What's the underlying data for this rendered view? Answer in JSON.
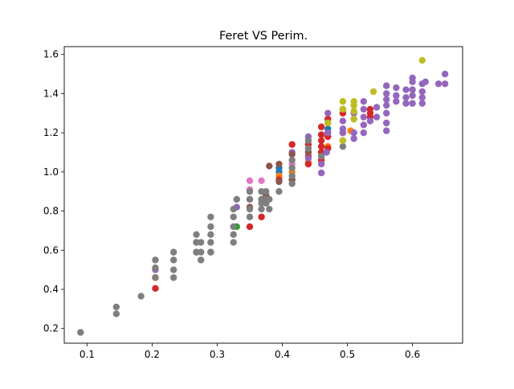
{
  "chart_data": {
    "type": "scatter",
    "title": "Feret VS Perim.",
    "xlabel": "",
    "ylabel": "",
    "xlim": [
      0.065,
      0.677
    ],
    "ylim": [
      0.125,
      1.64
    ],
    "xticks": [
      0.1,
      0.2,
      0.3,
      0.4,
      0.5,
      0.6
    ],
    "xtick_labels": [
      "0.1",
      "0.2",
      "0.3",
      "0.4",
      "0.5",
      "0.6"
    ],
    "yticks": [
      0.2,
      0.4,
      0.6,
      0.8,
      1.0,
      1.2,
      1.4,
      1.6
    ],
    "ytick_labels": [
      "0.2",
      "0.4",
      "0.6",
      "0.8",
      "1.0",
      "1.2",
      "1.4",
      "1.6"
    ],
    "grid": false,
    "legend": "none",
    "series": [
      {
        "color": "#1f77b4",
        "points": [
          [
            0.268,
            0.59
          ],
          [
            0.395,
            1.0
          ],
          [
            0.395,
            1.02
          ],
          [
            0.46,
            1.1
          ],
          [
            0.47,
            1.22
          ]
        ]
      },
      {
        "color": "#ff7f0e",
        "points": [
          [
            0.395,
            0.98
          ],
          [
            0.415,
            1.0
          ],
          [
            0.44,
            1.05
          ],
          [
            0.46,
            1.1
          ],
          [
            0.47,
            1.13
          ],
          [
            0.505,
            1.21
          ]
        ]
      },
      {
        "color": "#2ca02c",
        "points": [
          [
            0.29,
            0.59
          ],
          [
            0.33,
            0.72
          ],
          [
            0.415,
            0.96
          ],
          [
            0.47,
            1.2
          ]
        ]
      },
      {
        "color": "#d62728",
        "points": [
          [
            0.205,
            0.405
          ],
          [
            0.205,
            0.46
          ],
          [
            0.35,
            0.72
          ],
          [
            0.368,
            0.77
          ],
          [
            0.395,
            0.96
          ],
          [
            0.415,
            1.14
          ],
          [
            0.44,
            1.08
          ],
          [
            0.44,
            1.14
          ],
          [
            0.46,
            1.06
          ],
          [
            0.46,
            1.1
          ],
          [
            0.46,
            1.13
          ],
          [
            0.46,
            1.16
          ],
          [
            0.46,
            1.19
          ],
          [
            0.46,
            1.23
          ],
          [
            0.47,
            1.12
          ],
          [
            0.47,
            1.18
          ],
          [
            0.47,
            1.25
          ],
          [
            0.47,
            1.27
          ],
          [
            0.493,
            1.3
          ],
          [
            0.493,
            1.32
          ],
          [
            0.493,
            1.2
          ],
          [
            0.535,
            1.28
          ],
          [
            0.535,
            1.3
          ],
          [
            0.535,
            1.32
          ],
          [
            0.44,
            1.04
          ]
        ]
      },
      {
        "color": "#9467bd",
        "points": [
          [
            0.205,
            0.5
          ],
          [
            0.33,
            0.82
          ],
          [
            0.35,
            0.86
          ],
          [
            0.415,
            1.1
          ],
          [
            0.44,
            1.07
          ],
          [
            0.44,
            1.18
          ],
          [
            0.46,
            0.995
          ],
          [
            0.46,
            1.04
          ],
          [
            0.468,
            1.1
          ],
          [
            0.47,
            1.3
          ],
          [
            0.47,
            1.2
          ],
          [
            0.493,
            1.2
          ],
          [
            0.493,
            1.22
          ],
          [
            0.493,
            1.26
          ],
          [
            0.51,
            1.17
          ],
          [
            0.51,
            1.2
          ],
          [
            0.51,
            1.27
          ],
          [
            0.51,
            1.3
          ],
          [
            0.525,
            1.2
          ],
          [
            0.525,
            1.24
          ],
          [
            0.525,
            1.28
          ],
          [
            0.525,
            1.32
          ],
          [
            0.525,
            1.36
          ],
          [
            0.535,
            1.26
          ],
          [
            0.545,
            1.28
          ],
          [
            0.545,
            1.33
          ],
          [
            0.56,
            1.21
          ],
          [
            0.56,
            1.25
          ],
          [
            0.56,
            1.3
          ],
          [
            0.56,
            1.34
          ],
          [
            0.56,
            1.37
          ],
          [
            0.56,
            1.4
          ],
          [
            0.56,
            1.44
          ],
          [
            0.575,
            1.36
          ],
          [
            0.575,
            1.39
          ],
          [
            0.575,
            1.43
          ],
          [
            0.59,
            1.35
          ],
          [
            0.59,
            1.38
          ],
          [
            0.59,
            1.42
          ],
          [
            0.6,
            1.35
          ],
          [
            0.6,
            1.39
          ],
          [
            0.6,
            1.42
          ],
          [
            0.6,
            1.46
          ],
          [
            0.6,
            1.48
          ],
          [
            0.615,
            1.35
          ],
          [
            0.615,
            1.38
          ],
          [
            0.615,
            1.41
          ],
          [
            0.615,
            1.45
          ],
          [
            0.62,
            1.46
          ],
          [
            0.64,
            1.45
          ],
          [
            0.65,
            1.45
          ],
          [
            0.65,
            1.5
          ]
        ]
      },
      {
        "color": "#8c564b",
        "points": [
          [
            0.205,
            0.46
          ],
          [
            0.268,
            0.64
          ],
          [
            0.35,
            0.82
          ],
          [
            0.375,
            0.88
          ],
          [
            0.38,
            1.03
          ],
          [
            0.395,
            0.95
          ],
          [
            0.395,
            1.04
          ],
          [
            0.415,
            1.09
          ],
          [
            0.44,
            1.1
          ],
          [
            0.415,
            0.96
          ]
        ]
      },
      {
        "color": "#e377c2",
        "points": [
          [
            0.35,
            0.91
          ],
          [
            0.35,
            0.955
          ],
          [
            0.368,
            0.955
          ],
          [
            0.415,
            1.04
          ]
        ]
      },
      {
        "color": "#7f7f7f",
        "points": [
          [
            0.09,
            0.18
          ],
          [
            0.145,
            0.275
          ],
          [
            0.145,
            0.31
          ],
          [
            0.183,
            0.365
          ],
          [
            0.205,
            0.46
          ],
          [
            0.205,
            0.51
          ],
          [
            0.205,
            0.55
          ],
          [
            0.233,
            0.46
          ],
          [
            0.233,
            0.5
          ],
          [
            0.233,
            0.55
          ],
          [
            0.233,
            0.59
          ],
          [
            0.268,
            0.59
          ],
          [
            0.268,
            0.64
          ],
          [
            0.268,
            0.68
          ],
          [
            0.275,
            0.55
          ],
          [
            0.275,
            0.59
          ],
          [
            0.275,
            0.64
          ],
          [
            0.29,
            0.59
          ],
          [
            0.29,
            0.64
          ],
          [
            0.29,
            0.68
          ],
          [
            0.29,
            0.72
          ],
          [
            0.29,
            0.77
          ],
          [
            0.325,
            0.64
          ],
          [
            0.325,
            0.68
          ],
          [
            0.325,
            0.72
          ],
          [
            0.325,
            0.77
          ],
          [
            0.325,
            0.81
          ],
          [
            0.33,
            0.86
          ],
          [
            0.35,
            0.77
          ],
          [
            0.35,
            0.81
          ],
          [
            0.35,
            0.86
          ],
          [
            0.35,
            0.9
          ],
          [
            0.368,
            0.81
          ],
          [
            0.368,
            0.84
          ],
          [
            0.368,
            0.86
          ],
          [
            0.368,
            0.9
          ],
          [
            0.375,
            0.84
          ],
          [
            0.375,
            0.86
          ],
          [
            0.375,
            0.9
          ],
          [
            0.38,
            0.86
          ],
          [
            0.38,
            0.81
          ],
          [
            0.395,
            0.9
          ],
          [
            0.415,
            0.94
          ],
          [
            0.415,
            0.98
          ],
          [
            0.415,
            1.02
          ],
          [
            0.415,
            1.06
          ],
          [
            0.44,
            1.12
          ],
          [
            0.44,
            1.16
          ],
          [
            0.46,
            1.08
          ],
          [
            0.493,
            1.13
          ],
          [
            0.493,
            1.16
          ]
        ]
      },
      {
        "color": "#bcbd22",
        "points": [
          [
            0.493,
            1.36
          ],
          [
            0.493,
            1.32
          ],
          [
            0.51,
            1.36
          ],
          [
            0.51,
            1.34
          ],
          [
            0.51,
            1.31
          ],
          [
            0.51,
            1.27
          ],
          [
            0.54,
            1.41
          ],
          [
            0.615,
            1.57
          ],
          [
            0.493,
            1.16
          ],
          [
            0.47,
            1.25
          ]
        ]
      }
    ]
  }
}
